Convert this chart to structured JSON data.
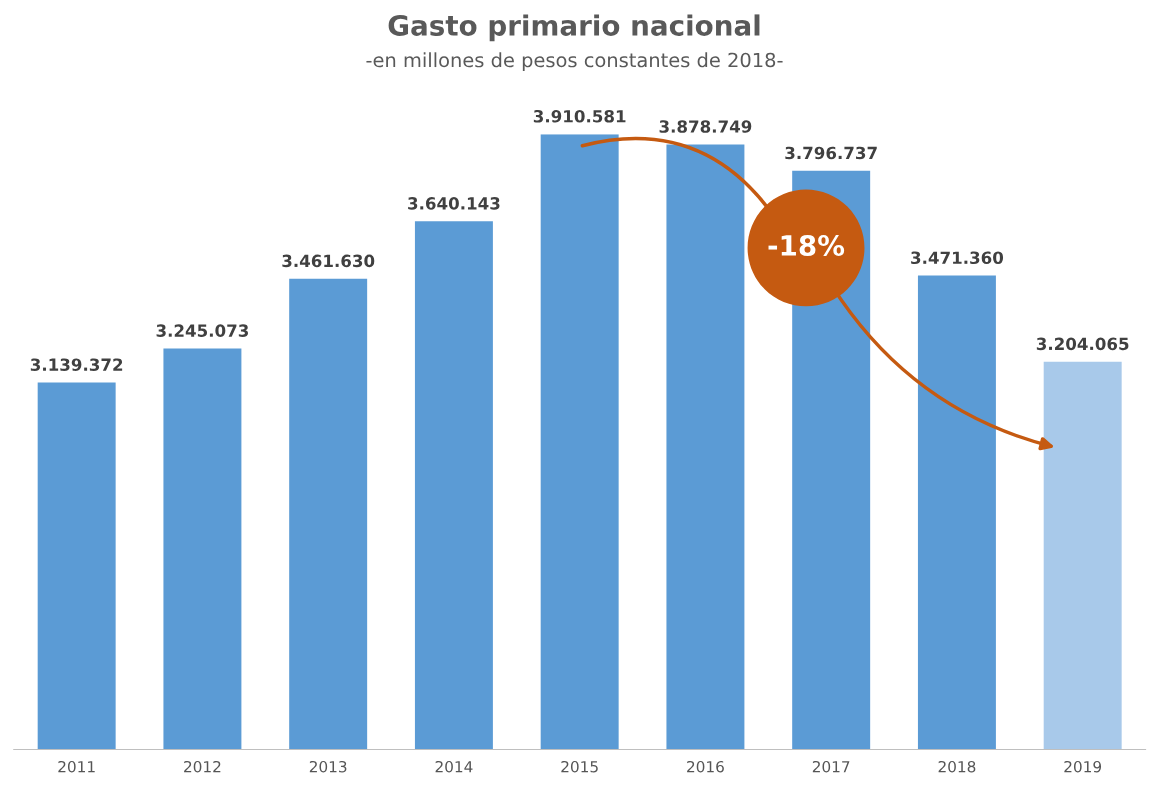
{
  "chart_data": {
    "type": "bar",
    "title": "Gasto primario nacional",
    "subtitle": "-en millones de pesos constantes de 2018-",
    "categories": [
      "2011",
      "2012",
      "2013",
      "2014",
      "2015",
      "2016",
      "2017",
      "2018",
      "2019"
    ],
    "values": [
      3139372,
      3245073,
      3461630,
      3640143,
      3910581,
      3878749,
      3796737,
      3471360,
      3204065
    ],
    "value_labels": [
      "3.139.372",
      "3.245.073",
      "3.461.630",
      "3.640.143",
      "3.910.581",
      "3.878.749",
      "3.796.737",
      "3.471.360",
      "3.204.065"
    ],
    "colors": [
      "#5b9bd5",
      "#5b9bd5",
      "#5b9bd5",
      "#5b9bd5",
      "#5b9bd5",
      "#5b9bd5",
      "#5b9bd5",
      "#5b9bd5",
      "#a8c9ea"
    ],
    "ylim": [
      2000000,
      3910581
    ],
    "tick_labels": "x",
    "grid": false,
    "legend": false,
    "annotations": [
      "-18%"
    ]
  }
}
